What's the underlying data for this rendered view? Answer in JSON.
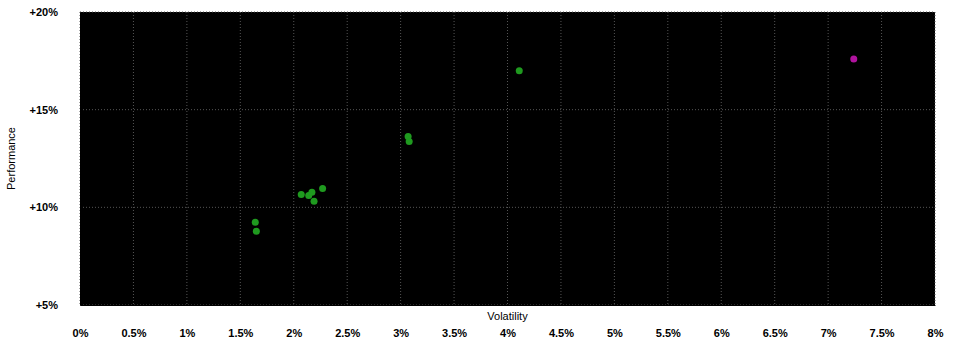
{
  "chart_data": {
    "type": "scatter",
    "x_label": "Volatility",
    "y_label": "Performance",
    "x": [
      1.64,
      1.65,
      2.07,
      2.14,
      2.17,
      2.19,
      2.27,
      3.07,
      3.08,
      4.11,
      7.24
    ],
    "values": [
      9.23,
      8.78,
      10.66,
      10.61,
      10.77,
      10.31,
      10.97,
      13.62,
      13.37,
      16.99,
      17.6
    ],
    "colors": [
      "#1f9a1f",
      "#1f9a1f",
      "#1f9a1f",
      "#1f9a1f",
      "#1f9a1f",
      "#1f9a1f",
      "#1f9a1f",
      "#1f9a1f",
      "#1f9a1f",
      "#1f9a1f",
      "#b0139e"
    ],
    "marker": "circle",
    "xlim": [
      0,
      8
    ],
    "xticks": [
      {
        "value": 0,
        "label": "0%"
      },
      {
        "value": 0.5,
        "label": "0.5%"
      },
      {
        "value": 1,
        "label": "1%"
      },
      {
        "value": 1.5,
        "label": "1.5%"
      },
      {
        "value": 2,
        "label": "2%"
      },
      {
        "value": 2.5,
        "label": "2.5%"
      },
      {
        "value": 3,
        "label": "3%"
      },
      {
        "value": 3.5,
        "label": "3.5%"
      },
      {
        "value": 4,
        "label": "4%"
      },
      {
        "value": 4.5,
        "label": "4.5%"
      },
      {
        "value": 5,
        "label": "5%"
      },
      {
        "value": 5.5,
        "label": "5.5%"
      },
      {
        "value": 6,
        "label": "6%"
      },
      {
        "value": 6.5,
        "label": "6.5%"
      },
      {
        "value": 7,
        "label": "7%"
      },
      {
        "value": 7.5,
        "label": "7.5%"
      },
      {
        "value": 8,
        "label": "8%"
      }
    ],
    "ylim": [
      5,
      20
    ],
    "yticks": [
      {
        "value": 5,
        "label": "+5%"
      },
      {
        "value": 10,
        "label": "+10%"
      },
      {
        "value": 15,
        "label": "+15%"
      },
      {
        "value": 20,
        "label": "+20%"
      }
    ],
    "grid": true
  }
}
